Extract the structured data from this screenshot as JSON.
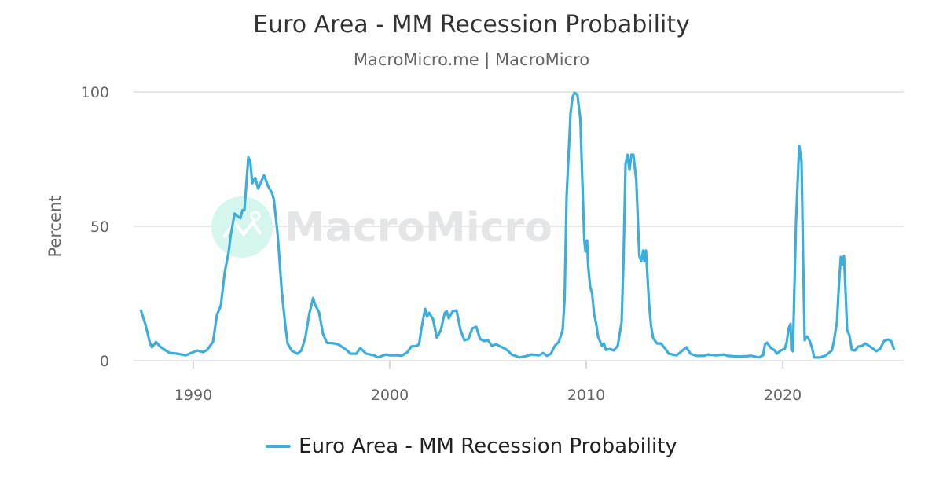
{
  "chart_data": {
    "type": "line",
    "title": "Euro Area - MM Recession Probability",
    "subtitle": "MacroMicro.me | MacroMicro",
    "xlabel": "",
    "ylabel": "Percent",
    "xlim": [
      1986.7,
      2026.2
    ],
    "ylim": [
      0,
      100
    ],
    "x_ticks": [
      1990,
      2000,
      2010,
      2020
    ],
    "y_ticks": [
      0,
      50,
      100
    ],
    "grid": true,
    "legend_placement": "bottom",
    "watermark": "MacroMicro",
    "series": [
      {
        "name": "Euro Area - MM Recession Probability",
        "color": "#3daedb",
        "points": [
          [
            1987.32,
            19
          ],
          [
            1987.56,
            13.5
          ],
          [
            1987.8,
            6.4
          ],
          [
            1987.9,
            5
          ],
          [
            1988.1,
            7
          ],
          [
            1988.3,
            5.3
          ],
          [
            1988.6,
            3.8
          ],
          [
            1988.8,
            2.9
          ],
          [
            1989.2,
            2.6
          ],
          [
            1989.6,
            2
          ],
          [
            1990.0,
            3.2
          ],
          [
            1990.2,
            3.8
          ],
          [
            1990.5,
            3.2
          ],
          [
            1990.7,
            4
          ],
          [
            1990.9,
            6
          ],
          [
            1991.0,
            7
          ],
          [
            1991.2,
            17
          ],
          [
            1991.4,
            20.5
          ],
          [
            1991.6,
            33
          ],
          [
            1991.8,
            40.5
          ],
          [
            1991.9,
            46.5
          ],
          [
            1992.1,
            54.7
          ],
          [
            1992.2,
            54
          ],
          [
            1992.4,
            53
          ],
          [
            1992.5,
            56
          ],
          [
            1992.6,
            56
          ],
          [
            1992.8,
            75.7
          ],
          [
            1992.9,
            74
          ],
          [
            1993.0,
            66
          ],
          [
            1993.15,
            68
          ],
          [
            1993.3,
            64
          ],
          [
            1993.6,
            69
          ],
          [
            1993.8,
            65
          ],
          [
            1994.0,
            62.5
          ],
          [
            1994.1,
            60
          ],
          [
            1994.3,
            46.5
          ],
          [
            1994.5,
            26
          ],
          [
            1994.7,
            12
          ],
          [
            1994.8,
            6.4
          ],
          [
            1995.0,
            3.8
          ],
          [
            1995.3,
            2.6
          ],
          [
            1995.5,
            3.8
          ],
          [
            1995.7,
            8.5
          ],
          [
            1995.9,
            17.3
          ],
          [
            1996.1,
            23.4
          ],
          [
            1996.2,
            20.8
          ],
          [
            1996.4,
            18
          ],
          [
            1996.6,
            10
          ],
          [
            1996.8,
            6.7
          ],
          [
            1997.2,
            6.4
          ],
          [
            1997.4,
            6
          ],
          [
            1997.8,
            4
          ],
          [
            1998.0,
            2.6
          ],
          [
            1998.3,
            2.6
          ],
          [
            1998.5,
            4.7
          ],
          [
            1998.8,
            2.6
          ],
          [
            1999.2,
            2
          ],
          [
            1999.4,
            1.2
          ],
          [
            1999.8,
            2.3
          ],
          [
            2000.0,
            2
          ],
          [
            2000.4,
            2
          ],
          [
            2000.6,
            1.8
          ],
          [
            2000.9,
            3.2
          ],
          [
            2001.1,
            5.3
          ],
          [
            2001.4,
            5.5
          ],
          [
            2001.5,
            6.4
          ],
          [
            2001.6,
            11.4
          ],
          [
            2001.8,
            19.3
          ],
          [
            2001.9,
            16.4
          ],
          [
            2002.0,
            17.8
          ],
          [
            2002.2,
            15.5
          ],
          [
            2002.4,
            8.5
          ],
          [
            2002.6,
            11.4
          ],
          [
            2002.8,
            17.8
          ],
          [
            2002.9,
            18.4
          ],
          [
            2003.0,
            15.8
          ],
          [
            2003.2,
            18.4
          ],
          [
            2003.4,
            18.7
          ],
          [
            2003.6,
            11.4
          ],
          [
            2003.8,
            7.6
          ],
          [
            2004.0,
            8
          ],
          [
            2004.2,
            12
          ],
          [
            2004.4,
            12.6
          ],
          [
            2004.6,
            8
          ],
          [
            2004.8,
            7.3
          ],
          [
            2005.0,
            7.6
          ],
          [
            2005.2,
            5.5
          ],
          [
            2005.4,
            6.1
          ],
          [
            2005.8,
            4.7
          ],
          [
            2006.0,
            3.8
          ],
          [
            2006.2,
            2.3
          ],
          [
            2006.6,
            1.2
          ],
          [
            2007.0,
            1.8
          ],
          [
            2007.2,
            2.3
          ],
          [
            2007.6,
            2
          ],
          [
            2007.8,
            2.9
          ],
          [
            2008.0,
            1.8
          ],
          [
            2008.2,
            2.6
          ],
          [
            2008.4,
            5.5
          ],
          [
            2008.6,
            7
          ],
          [
            2008.8,
            11.4
          ],
          [
            2008.9,
            23
          ],
          [
            2009.0,
            61
          ],
          [
            2009.2,
            92
          ],
          [
            2009.3,
            98
          ],
          [
            2009.4,
            99.7
          ],
          [
            2009.55,
            99
          ],
          [
            2009.7,
            90
          ],
          [
            2009.8,
            67
          ],
          [
            2009.9,
            45
          ],
          [
            2009.96,
            40.6
          ],
          [
            2010.04,
            44.7
          ],
          [
            2010.1,
            35
          ],
          [
            2010.2,
            27.5
          ],
          [
            2010.3,
            25
          ],
          [
            2010.4,
            17.3
          ],
          [
            2010.5,
            14
          ],
          [
            2010.6,
            9
          ],
          [
            2010.8,
            5.5
          ],
          [
            2010.9,
            6.4
          ],
          [
            2011.0,
            4
          ],
          [
            2011.2,
            4.4
          ],
          [
            2011.4,
            3.8
          ],
          [
            2011.6,
            5.5
          ],
          [
            2011.8,
            14.3
          ],
          [
            2011.9,
            38
          ],
          [
            2012.0,
            73
          ],
          [
            2012.1,
            76.6
          ],
          [
            2012.2,
            71
          ],
          [
            2012.3,
            76.6
          ],
          [
            2012.4,
            76.6
          ],
          [
            2012.55,
            67
          ],
          [
            2012.7,
            39
          ],
          [
            2012.8,
            37
          ],
          [
            2012.9,
            41
          ],
          [
            2012.96,
            37
          ],
          [
            2013.04,
            41
          ],
          [
            2013.2,
            21
          ],
          [
            2013.3,
            12.9
          ],
          [
            2013.4,
            8.5
          ],
          [
            2013.6,
            6.4
          ],
          [
            2013.8,
            6.4
          ],
          [
            2014.0,
            4.7
          ],
          [
            2014.2,
            2.6
          ],
          [
            2014.6,
            2
          ],
          [
            2014.8,
            3.2
          ],
          [
            2015.1,
            5
          ],
          [
            2015.3,
            2.6
          ],
          [
            2015.6,
            1.8
          ],
          [
            2016.0,
            1.8
          ],
          [
            2016.2,
            2.3
          ],
          [
            2016.6,
            2
          ],
          [
            2017.0,
            2.3
          ],
          [
            2017.2,
            1.8
          ],
          [
            2017.8,
            1.5
          ],
          [
            2018.4,
            1.8
          ],
          [
            2018.8,
            1.2
          ],
          [
            2019.0,
            2
          ],
          [
            2019.1,
            6.1
          ],
          [
            2019.2,
            6.7
          ],
          [
            2019.4,
            4.7
          ],
          [
            2019.6,
            3.8
          ],
          [
            2019.7,
            2.6
          ],
          [
            2019.9,
            3.8
          ],
          [
            2020.1,
            4.4
          ],
          [
            2020.2,
            6.7
          ],
          [
            2020.3,
            12
          ],
          [
            2020.4,
            13.7
          ],
          [
            2020.44,
            4
          ],
          [
            2020.52,
            3.5
          ],
          [
            2020.68,
            52
          ],
          [
            2020.84,
            80
          ],
          [
            2020.96,
            74
          ],
          [
            2021.04,
            38
          ],
          [
            2021.12,
            7.6
          ],
          [
            2021.24,
            9
          ],
          [
            2021.36,
            7.6
          ],
          [
            2021.5,
            4.7
          ],
          [
            2021.6,
            1.2
          ],
          [
            2021.9,
            1.2
          ],
          [
            2022.2,
            2
          ],
          [
            2022.5,
            3.8
          ],
          [
            2022.6,
            7
          ],
          [
            2022.76,
            14.3
          ],
          [
            2022.88,
            30.4
          ],
          [
            2022.96,
            38.6
          ],
          [
            2023.04,
            35.7
          ],
          [
            2023.12,
            39
          ],
          [
            2023.2,
            26
          ],
          [
            2023.28,
            11.4
          ],
          [
            2023.4,
            9.4
          ],
          [
            2023.52,
            4
          ],
          [
            2023.68,
            3.8
          ],
          [
            2023.84,
            5.3
          ],
          [
            2024.04,
            5.5
          ],
          [
            2024.2,
            6.4
          ],
          [
            2024.4,
            5.5
          ],
          [
            2024.56,
            4.7
          ],
          [
            2024.76,
            3.5
          ],
          [
            2024.96,
            4.4
          ],
          [
            2025.16,
            7.3
          ],
          [
            2025.36,
            7.9
          ],
          [
            2025.52,
            7.3
          ],
          [
            2025.68,
            4
          ]
        ]
      }
    ]
  }
}
